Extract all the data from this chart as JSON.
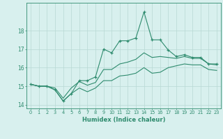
{
  "xlabel": "Humidex (Indice chaleur)",
  "x": [
    0,
    1,
    2,
    3,
    4,
    5,
    6,
    7,
    8,
    9,
    10,
    11,
    12,
    13,
    14,
    15,
    16,
    17,
    18,
    19,
    20,
    21,
    22,
    23
  ],
  "line_max": [
    15.1,
    15.0,
    15.0,
    14.8,
    14.2,
    14.6,
    15.3,
    15.3,
    15.5,
    17.0,
    16.8,
    17.45,
    17.45,
    17.6,
    19.0,
    17.5,
    17.5,
    16.95,
    16.6,
    16.7,
    16.55,
    16.55,
    16.2,
    16.2
  ],
  "line_avg": [
    15.1,
    15.0,
    15.0,
    14.9,
    14.35,
    14.9,
    15.25,
    15.05,
    15.2,
    15.9,
    15.9,
    16.2,
    16.3,
    16.45,
    16.8,
    16.55,
    16.6,
    16.55,
    16.5,
    16.6,
    16.5,
    16.5,
    16.2,
    16.15
  ],
  "line_min": [
    15.1,
    15.0,
    15.0,
    14.8,
    14.2,
    14.6,
    14.9,
    14.7,
    14.9,
    15.3,
    15.3,
    15.55,
    15.6,
    15.7,
    16.0,
    15.7,
    15.75,
    16.0,
    16.1,
    16.2,
    16.15,
    16.15,
    15.9,
    15.85
  ],
  "line_color": "#2e8b6e",
  "bg_color": "#d8f0ee",
  "grid_color": "#b8d8d4",
  "ylim": [
    13.8,
    19.5
  ],
  "yticks": [
    14,
    15,
    16,
    17,
    18
  ],
  "xlim": [
    -0.5,
    23.5
  ]
}
